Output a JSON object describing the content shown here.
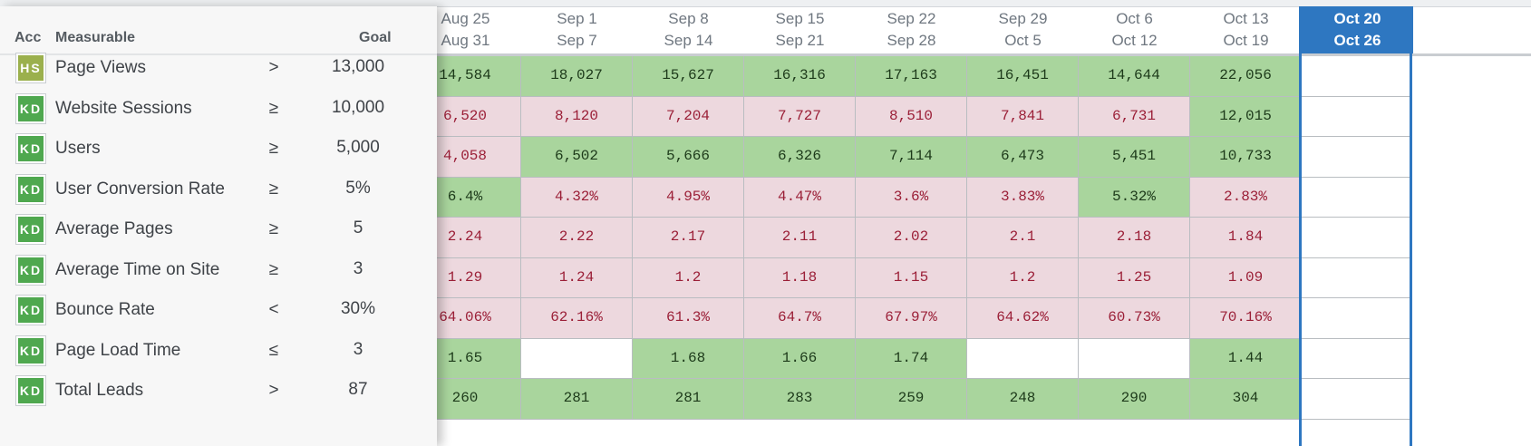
{
  "colors": {
    "good": "#a9d59d",
    "bad": "#edd8de",
    "current_week": "#2e77c1",
    "acc_hs": "#9bb04d",
    "acc_kd": "#4fa84f"
  },
  "left_header": {
    "acc": "Acc",
    "measurable": "Measurable",
    "goal": "Goal"
  },
  "weeks": [
    {
      "l1": "Aug 25",
      "l2": "Aug 31"
    },
    {
      "l1": "Sep 1",
      "l2": "Sep 7"
    },
    {
      "l1": "Sep 8",
      "l2": "Sep 14"
    },
    {
      "l1": "Sep 15",
      "l2": "Sep 21"
    },
    {
      "l1": "Sep 22",
      "l2": "Sep 28"
    },
    {
      "l1": "Sep 29",
      "l2": "Oct 5"
    },
    {
      "l1": "Oct 6",
      "l2": "Oct 12"
    },
    {
      "l1": "Oct 13",
      "l2": "Oct 19"
    },
    {
      "l1": "Oct 20",
      "l2": "Oct 26",
      "current": true
    }
  ],
  "rows": [
    {
      "acc": "HS",
      "name": "Page Views",
      "op": ">",
      "goal": "13,000",
      "values": [
        "14,584",
        "18,027",
        "15,627",
        "16,316",
        "17,163",
        "16,451",
        "14,644",
        "22,056",
        ""
      ],
      "status": [
        "good",
        "good",
        "good",
        "good",
        "good",
        "good",
        "good",
        "good",
        "current"
      ]
    },
    {
      "acc": "KD",
      "name": "Website Sessions",
      "op": "≥",
      "goal": "10,000",
      "values": [
        "6,520",
        "8,120",
        "7,204",
        "7,727",
        "8,510",
        "7,841",
        "6,731",
        "12,015",
        ""
      ],
      "status": [
        "bad",
        "bad",
        "bad",
        "bad",
        "bad",
        "bad",
        "bad",
        "good",
        "current"
      ]
    },
    {
      "acc": "KD",
      "name": "Users",
      "op": "≥",
      "goal": "5,000",
      "values": [
        "4,058",
        "6,502",
        "5,666",
        "6,326",
        "7,114",
        "6,473",
        "5,451",
        "10,733",
        ""
      ],
      "status": [
        "bad",
        "good",
        "good",
        "good",
        "good",
        "good",
        "good",
        "good",
        "current"
      ]
    },
    {
      "acc": "KD",
      "name": "User Conversion Rate",
      "op": "≥",
      "goal": "5%",
      "values": [
        "6.4%",
        "4.32%",
        "4.95%",
        "4.47%",
        "3.6%",
        "3.83%",
        "5.32%",
        "2.83%",
        ""
      ],
      "status": [
        "good",
        "bad",
        "bad",
        "bad",
        "bad",
        "bad",
        "good",
        "bad",
        "current"
      ]
    },
    {
      "acc": "KD",
      "name": "Average Pages",
      "op": "≥",
      "goal": "5",
      "values": [
        "2.24",
        "2.22",
        "2.17",
        "2.11",
        "2.02",
        "2.1",
        "2.18",
        "1.84",
        ""
      ],
      "status": [
        "bad",
        "bad",
        "bad",
        "bad",
        "bad",
        "bad",
        "bad",
        "bad",
        "current"
      ]
    },
    {
      "acc": "KD",
      "name": "Average Time on Site",
      "op": "≥",
      "goal": "3",
      "values": [
        "1.29",
        "1.24",
        "1.2",
        "1.18",
        "1.15",
        "1.2",
        "1.25",
        "1.09",
        ""
      ],
      "status": [
        "bad",
        "bad",
        "bad",
        "bad",
        "bad",
        "bad",
        "bad",
        "bad",
        "current"
      ]
    },
    {
      "acc": "KD",
      "name": "Bounce Rate",
      "op": "<",
      "goal": "30%",
      "values": [
        "64.06%",
        "62.16%",
        "61.3%",
        "64.7%",
        "67.97%",
        "64.62%",
        "60.73%",
        "70.16%",
        ""
      ],
      "status": [
        "bad",
        "bad",
        "bad",
        "bad",
        "bad",
        "bad",
        "bad",
        "bad",
        "current"
      ]
    },
    {
      "acc": "KD",
      "name": "Page Load Time",
      "op": "≤",
      "goal": "3",
      "values": [
        "1.65",
        "",
        "1.68",
        "1.66",
        "1.74",
        "",
        "",
        "1.44",
        ""
      ],
      "status": [
        "good",
        "empty",
        "good",
        "good",
        "good",
        "empty",
        "empty",
        "good",
        "current"
      ]
    },
    {
      "acc": "KD",
      "name": "Total Leads",
      "op": ">",
      "goal": "87",
      "values": [
        "260",
        "281",
        "281",
        "283",
        "259",
        "248",
        "290",
        "304",
        ""
      ],
      "status": [
        "good",
        "good",
        "good",
        "good",
        "good",
        "good",
        "good",
        "good",
        "current"
      ]
    }
  ]
}
